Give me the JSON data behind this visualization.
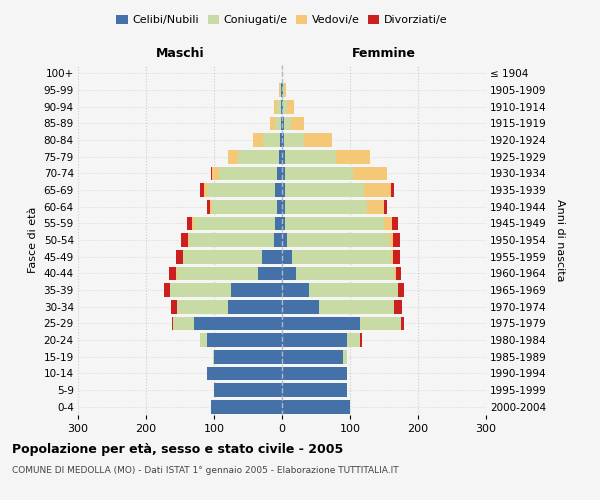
{
  "age_groups": [
    "0-4",
    "5-9",
    "10-14",
    "15-19",
    "20-24",
    "25-29",
    "30-34",
    "35-39",
    "40-44",
    "45-49",
    "50-54",
    "55-59",
    "60-64",
    "65-69",
    "70-74",
    "75-79",
    "80-84",
    "85-89",
    "90-94",
    "95-99",
    "100+"
  ],
  "birth_years": [
    "2000-2004",
    "1995-1999",
    "1990-1994",
    "1985-1989",
    "1980-1984",
    "1975-1979",
    "1970-1974",
    "1965-1969",
    "1960-1964",
    "1955-1959",
    "1950-1954",
    "1945-1949",
    "1940-1944",
    "1935-1939",
    "1930-1934",
    "1925-1929",
    "1920-1924",
    "1915-1919",
    "1910-1914",
    "1905-1909",
    "≤ 1904"
  ],
  "male_celibi": [
    105,
    100,
    110,
    100,
    110,
    130,
    80,
    75,
    35,
    30,
    12,
    10,
    8,
    10,
    8,
    5,
    3,
    2,
    2,
    1,
    0
  ],
  "male_coniugati": [
    0,
    0,
    0,
    2,
    10,
    30,
    75,
    90,
    120,
    115,
    125,
    120,
    95,
    100,
    85,
    60,
    25,
    8,
    5,
    2,
    0
  ],
  "male_vedovi": [
    0,
    0,
    0,
    0,
    0,
    0,
    0,
    0,
    1,
    1,
    1,
    2,
    3,
    5,
    10,
    15,
    15,
    8,
    5,
    2,
    0
  ],
  "male_divorziati": [
    0,
    0,
    0,
    0,
    0,
    2,
    8,
    8,
    10,
    10,
    10,
    8,
    5,
    5,
    2,
    0,
    0,
    0,
    0,
    0,
    0
  ],
  "female_celibi": [
    100,
    95,
    95,
    90,
    95,
    115,
    55,
    40,
    20,
    15,
    8,
    5,
    5,
    5,
    5,
    5,
    3,
    3,
    2,
    1,
    0
  ],
  "female_coniugati": [
    0,
    0,
    0,
    5,
    20,
    60,
    110,
    130,
    145,
    145,
    150,
    145,
    120,
    115,
    100,
    75,
    30,
    10,
    5,
    2,
    0
  ],
  "female_vedovi": [
    0,
    0,
    0,
    0,
    0,
    0,
    0,
    1,
    2,
    3,
    5,
    12,
    25,
    40,
    50,
    50,
    40,
    20,
    10,
    3,
    0
  ],
  "female_divorziati": [
    0,
    0,
    0,
    0,
    2,
    5,
    12,
    8,
    8,
    10,
    10,
    8,
    5,
    5,
    0,
    0,
    0,
    0,
    0,
    0,
    0
  ],
  "color_celibi": "#4472a8",
  "color_coniugati": "#c8dba4",
  "color_vedovi": "#f5c878",
  "color_divorziati": "#cc2020",
  "title": "Popolazione per età, sesso e stato civile - 2005",
  "subtitle": "COMUNE DI MEDOLLA (MO) - Dati ISTAT 1° gennaio 2005 - Elaborazione TUTTITALIA.IT",
  "label_maschi": "Maschi",
  "label_femmine": "Femmine",
  "ylabel_left": "Fasce di età",
  "ylabel_right": "Anni di nascita",
  "xlim": 300,
  "background_color": "#f5f5f5",
  "grid_color": "#cccccc",
  "legend_labels": [
    "Celibi/Nubili",
    "Coniugati/e",
    "Vedovi/e",
    "Divorziati/e"
  ]
}
